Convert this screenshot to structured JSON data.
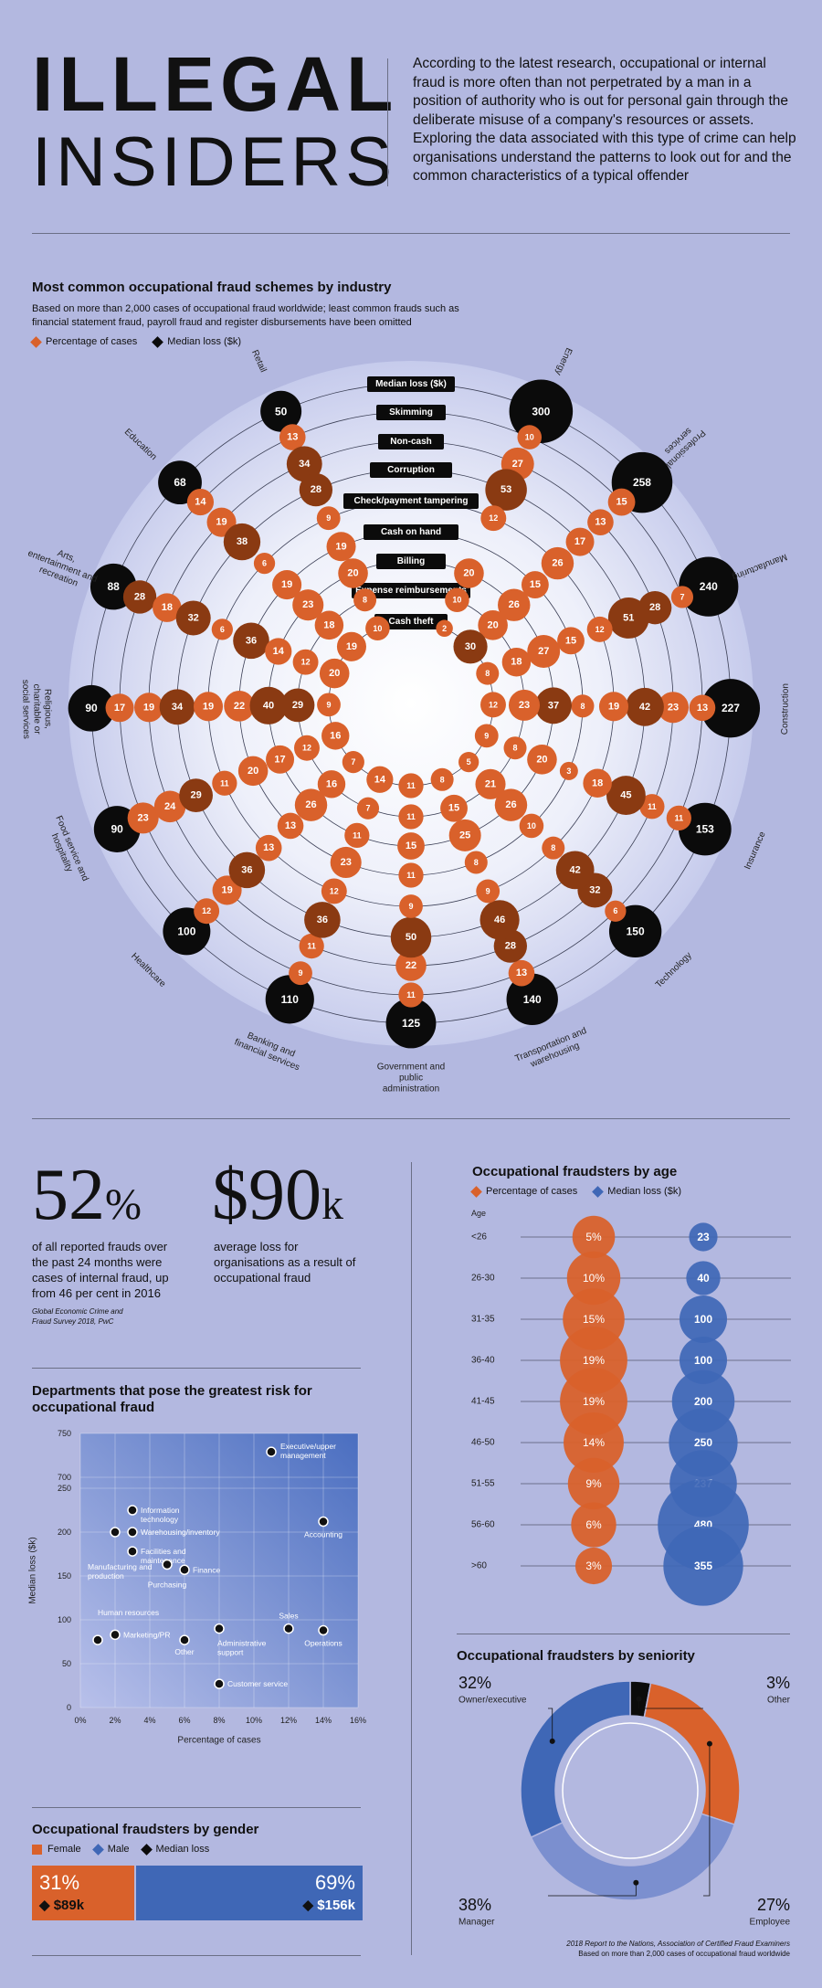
{
  "header": {
    "title_line1": "ILLEGAL",
    "title_line2": "INSIDERS",
    "intro": "According to the latest research, occupational or internal fraud is more often than not perpetrated by a man in a position of authority who is out for personal gain through the deliberate misuse of a company's resources or assets. Exploring the data associated with this type of crime can help organisations understand the patterns to look out for and the common characteristics of a typical offender"
  },
  "colors": {
    "orange": "#d9612b",
    "brown": "#8a3a12",
    "black": "#0b0b0b",
    "blue": "#3f67b6",
    "lightblue": "#7b8fcf",
    "bg": "#b3b8e0"
  },
  "industry": {
    "title": "Most common occupational fraud schemes by industry",
    "subtitle_line1": "Based on more than 2,000 cases of occupational fraud worldwide; least common frauds such as",
    "subtitle_line2": "financial statement fraud, payroll fraud and register disbursements have been omitted",
    "legend_pct": "Percentage of cases",
    "legend_loss": "Median loss ($k)"
  },
  "stats": {
    "stat1_value": "52",
    "stat1_unit": "%",
    "stat1_text": "of all reported frauds over the past 24 months were cases of internal fraud, up from 46 per cent in 2016",
    "stat2_value": "$90",
    "stat2_unit": "k",
    "stat2_text": "average loss for organisations as a result of occupational fraud",
    "source_line1": "Global Economic Crime and",
    "source_line2": "Fraud Survey 2018, PwC"
  },
  "departments": {
    "title_line1": "Departments that pose the greatest risk for",
    "title_line2": "occupational fraud"
  },
  "gender": {
    "title": "Occupational fraudsters by gender",
    "legend_female": "Female",
    "legend_male": "Male",
    "legend_loss": "Median loss",
    "female_pct": "31%",
    "female_loss": "$89k",
    "male_pct": "69%",
    "male_loss": "$156k"
  },
  "age": {
    "title": "Occupational fraudsters by age",
    "legend_pct": "Percentage of cases",
    "legend_loss": "Median loss ($k)",
    "axis_label": "Age"
  },
  "seniority": {
    "title": "Occupational fraudsters by seniority",
    "source_line1": "2018 Report to the Nations, Association of Certified Fraud Examiners",
    "source_line2": "Based on more than 2,000 cases of occupational fraud worldwide"
  },
  "chart_data": [
    {
      "type": "radial-bubble",
      "title": "Most common occupational fraud schemes by industry",
      "rings": [
        "Median loss ($k)",
        "Skimming",
        "Non-cash",
        "Corruption",
        "Check/payment tampering",
        "Cash on hand",
        "Billing",
        "Expense reimbursements",
        "Cash theft"
      ],
      "industries": [
        {
          "name": "Energy",
          "median_loss": 300,
          "skimming": 10,
          "non_cash": 27,
          "corruption": 53,
          "check_tampering": 12,
          "cash_on_hand": null,
          "billing": 20,
          "expense": 10,
          "cash_theft": 2
        },
        {
          "name": "Professional services",
          "median_loss": 258,
          "skimming": 15,
          "non_cash": 13,
          "corruption": 17,
          "check_tampering": 26,
          "cash_on_hand": 15,
          "billing": 26,
          "expense": 20,
          "cash_theft": 30
        },
        {
          "name": "Manufacturing",
          "median_loss": 240,
          "skimming": 7,
          "non_cash": 28,
          "corruption": 51,
          "check_tampering": 12,
          "cash_on_hand": 15,
          "billing": 27,
          "expense": 18,
          "cash_theft": 8
        },
        {
          "name": "Construction",
          "median_loss": 227,
          "skimming": 13,
          "non_cash": 23,
          "corruption": 42,
          "check_tampering": 19,
          "cash_on_hand": 8,
          "billing": 37,
          "expense": 23,
          "cash_theft": 12
        },
        {
          "name": "Insurance",
          "median_loss": 153,
          "skimming": 11,
          "non_cash": 11,
          "corruption": 45,
          "check_tampering": 18,
          "cash_on_hand": 3,
          "billing": 20,
          "expense": 8,
          "cash_theft": 9
        },
        {
          "name": "Technology",
          "median_loss": 150,
          "skimming": 6,
          "non_cash": 32,
          "corruption": 42,
          "check_tampering": 8,
          "cash_on_hand": 10,
          "billing": 26,
          "expense": 21,
          "cash_theft": 5
        },
        {
          "name": "Transportation and warehousing",
          "median_loss": 140,
          "skimming": 13,
          "non_cash": 28,
          "corruption": 46,
          "check_tampering": 9,
          "cash_on_hand": 8,
          "billing": 25,
          "expense": 15,
          "cash_theft": 8
        },
        {
          "name": "Government and public administration",
          "median_loss": 125,
          "skimming": 11,
          "non_cash": 22,
          "corruption": 50,
          "check_tampering": 9,
          "cash_on_hand": 11,
          "billing": 15,
          "expense": 11,
          "cash_theft": 11
        },
        {
          "name": "Banking and financial services",
          "median_loss": 110,
          "skimming": 9,
          "non_cash": 11,
          "corruption": 36,
          "check_tampering": 12,
          "cash_on_hand": 23,
          "billing": 11,
          "expense": 7,
          "cash_theft": 14
        },
        {
          "name": "Healthcare",
          "median_loss": 100,
          "skimming": 12,
          "non_cash": 19,
          "corruption": 36,
          "check_tampering": 13,
          "cash_on_hand": 13,
          "billing": 26,
          "expense": 16,
          "cash_theft": 7
        },
        {
          "name": "Food service and hospitality",
          "median_loss": 90,
          "skimming": 23,
          "non_cash": 24,
          "corruption": 29,
          "check_tampering": 11,
          "cash_on_hand": 20,
          "billing": 17,
          "expense": 12,
          "cash_theft": 16
        },
        {
          "name": "Religious, charitable or social services",
          "median_loss": 90,
          "skimming": 17,
          "non_cash": 19,
          "corruption": 34,
          "check_tampering": 19,
          "cash_on_hand": 22,
          "billing": 40,
          "expense": 29,
          "cash_theft": 9
        },
        {
          "name": "Arts, entertainment and recreation",
          "median_loss": 88,
          "skimming": 28,
          "non_cash": 18,
          "corruption": 32,
          "check_tampering": 6,
          "cash_on_hand": 36,
          "billing": 14,
          "expense": 12,
          "cash_theft": 20
        },
        {
          "name": "Education",
          "median_loss": 68,
          "skimming": 14,
          "non_cash": 19,
          "corruption": 38,
          "check_tampering": 6,
          "cash_on_hand": 19,
          "billing": 23,
          "expense": 18,
          "cash_theft": 19
        },
        {
          "name": "Retail",
          "median_loss": 50,
          "skimming": 13,
          "non_cash": 34,
          "corruption": 28,
          "check_tampering": 9,
          "cash_on_hand": 19,
          "billing": 20,
          "expense": 8,
          "cash_theft": 10
        }
      ]
    },
    {
      "type": "scatter",
      "title": "Departments that pose the greatest risk for occupational fraud",
      "xlabel": "Percentage of cases",
      "ylabel": "Median loss ($k)",
      "xlim": [
        0,
        16
      ],
      "x_ticks": [
        "0%",
        "2%",
        "4%",
        "6%",
        "8%",
        "10%",
        "12%",
        "14%",
        "16%"
      ],
      "y_ticks": [
        "0",
        "50",
        "100",
        "150",
        "200",
        "250",
        "700",
        "750"
      ],
      "axis_break": [
        250,
        700
      ],
      "points": [
        {
          "label": "Executive/upper management",
          "x": 11,
          "y": 729
        },
        {
          "label": "Information technology",
          "x": 3,
          "y": 225
        },
        {
          "label": "Warehousing/inventory",
          "x": 3,
          "y": 200
        },
        {
          "label": "Manufacturing and production",
          "x": 2,
          "y": 200
        },
        {
          "label": "Accounting",
          "x": 14,
          "y": 212
        },
        {
          "label": "Facilities and maintenance",
          "x": 3,
          "y": 178
        },
        {
          "label": "Purchasing",
          "x": 5,
          "y": 163
        },
        {
          "label": "Finance",
          "x": 6,
          "y": 157
        },
        {
          "label": "Human resources",
          "x": 1,
          "y": 77
        },
        {
          "label": "Marketing/PR",
          "x": 2,
          "y": 83
        },
        {
          "label": "Other",
          "x": 6,
          "y": 77
        },
        {
          "label": "Administrative support",
          "x": 8,
          "y": 90
        },
        {
          "label": "Sales",
          "x": 12,
          "y": 90
        },
        {
          "label": "Operations",
          "x": 14,
          "y": 88
        },
        {
          "label": "Customer service",
          "x": 8,
          "y": 27
        }
      ]
    },
    {
      "type": "bubble",
      "title": "Occupational fraudsters by age",
      "categories": [
        "<26",
        "26-30",
        "31-35",
        "36-40",
        "41-45",
        "46-50",
        "51-55",
        "56-60",
        ">60"
      ],
      "series": [
        {
          "name": "Percentage of cases",
          "values": [
            5,
            10,
            15,
            19,
            19,
            14,
            9,
            6,
            3
          ],
          "labels": [
            "5%",
            "10%",
            "15%",
            "19%",
            "19%",
            "14%",
            "9%",
            "6%",
            "3%"
          ]
        },
        {
          "name": "Median loss ($k)",
          "values": [
            23,
            40,
            100,
            100,
            200,
            250,
            237,
            480,
            355
          ],
          "labels": [
            "23",
            "40",
            "100",
            "100",
            "200",
            "250",
            "237",
            "480",
            "355"
          ]
        }
      ]
    },
    {
      "type": "pie",
      "title": "Occupational fraudsters by seniority",
      "categories": [
        "Owner/executive",
        "Other",
        "Employee",
        "Manager"
      ],
      "values": [
        32,
        3,
        27,
        38
      ],
      "labels": [
        "32%",
        "3%",
        "27%",
        "38%"
      ]
    },
    {
      "type": "bar",
      "title": "Occupational fraudsters by gender",
      "categories": [
        "Female",
        "Male"
      ],
      "values": [
        31,
        69
      ],
      "median_loss": [
        "$89k",
        "$156k"
      ]
    }
  ]
}
